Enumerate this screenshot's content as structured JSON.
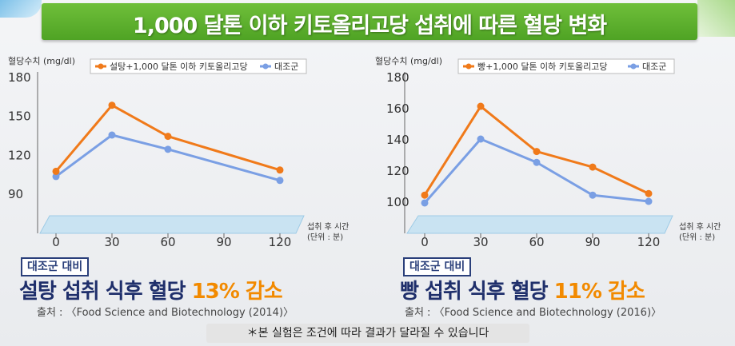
{
  "header": {
    "title": "1,000 달톤 이하 키토올리고당 섭취에 따른 혈당 변화"
  },
  "footnote": "＊본 실험은 조건에 따라 결과가 달라질 수 있습니다",
  "panels": [
    {
      "badge": "대조군 대비",
      "headline_pre": "설탕 섭취 식후 혈당 ",
      "headline_highlight": "13% 감소",
      "source": "출처 : 〈Food Science and Biotechnology (2014)〉"
    },
    {
      "badge": "대조군 대비",
      "headline_pre": "빵 섭취 식후 혈당 ",
      "headline_highlight": "11% 감소",
      "source": "출처 : 〈Food Science and Biotechnology (2016)〉"
    }
  ],
  "colors": {
    "treatment": "#f07a1a",
    "control": "#7a9fe4",
    "band": "#c9e3f2"
  },
  "chart_data": [
    {
      "type": "line",
      "ylabel": "혈당수치 (mg/dl)",
      "xlabel": "섭취 후 시간",
      "xunit": "(단위 : 분)",
      "x": [
        0,
        30,
        60,
        90,
        120
      ],
      "ylim": [
        80,
        180
      ],
      "yticks": [
        90,
        120,
        150,
        180
      ],
      "legend_position": "top",
      "series": [
        {
          "name": "설탕+1,000 달톤 이하 키토올리고당",
          "color": "#f07a1a",
          "points": [
            [
              0,
              107
            ],
            [
              30,
              158
            ],
            [
              60,
              134
            ],
            [
              120,
              108
            ]
          ]
        },
        {
          "name": "대조군",
          "color": "#7a9fe4",
          "points": [
            [
              0,
              103
            ],
            [
              30,
              135
            ],
            [
              60,
              124
            ],
            [
              120,
              100
            ]
          ]
        }
      ]
    },
    {
      "type": "line",
      "ylabel": "혈당수치 (mg/dl)",
      "xlabel": "섭취 후 시간",
      "xunit": "(단위 : 분)",
      "x": [
        0,
        30,
        60,
        90,
        120
      ],
      "ylim": [
        90,
        180
      ],
      "yticks": [
        100,
        120,
        140,
        160,
        180
      ],
      "legend_position": "top",
      "series": [
        {
          "name": "빵+1,000 달톤 이하 키토올리고당",
          "color": "#f07a1a",
          "points": [
            [
              0,
              104
            ],
            [
              30,
              161
            ],
            [
              60,
              132
            ],
            [
              90,
              122
            ],
            [
              120,
              105
            ]
          ]
        },
        {
          "name": "대조군",
          "color": "#7a9fe4",
          "points": [
            [
              0,
              99
            ],
            [
              30,
              140
            ],
            [
              60,
              125
            ],
            [
              90,
              104
            ],
            [
              120,
              100
            ]
          ]
        }
      ]
    }
  ]
}
